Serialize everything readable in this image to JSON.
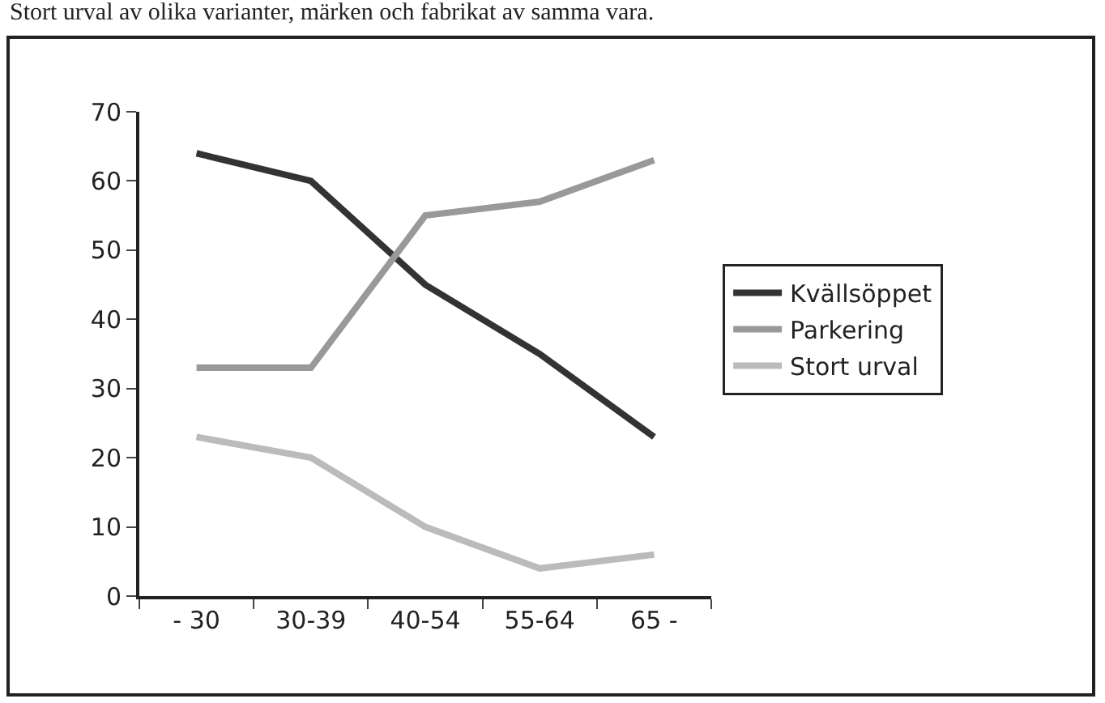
{
  "chart_data": {
    "type": "line",
    "title": "Stort urval av olika varianter, märken och fabrikat av samma vara.",
    "categories": [
      "- 30",
      "30-39",
      "40-54",
      "55-64",
      "65 -"
    ],
    "series": [
      {
        "name": "Kvällsöppet",
        "color": "#333333",
        "values": [
          64,
          60,
          45,
          35,
          23
        ]
      },
      {
        "name": "Parkering",
        "color": "#999999",
        "values": [
          33,
          33,
          55,
          57,
          63
        ]
      },
      {
        "name": "Stort urval",
        "color": "#bbbbbb",
        "values": [
          23,
          20,
          10,
          4,
          6
        ]
      }
    ],
    "ylim": [
      0,
      70
    ],
    "yticks": [
      0,
      10,
      20,
      30,
      40,
      50,
      60,
      70
    ],
    "grid": false,
    "legend": "right",
    "marker": "none",
    "line_style": "solid"
  }
}
